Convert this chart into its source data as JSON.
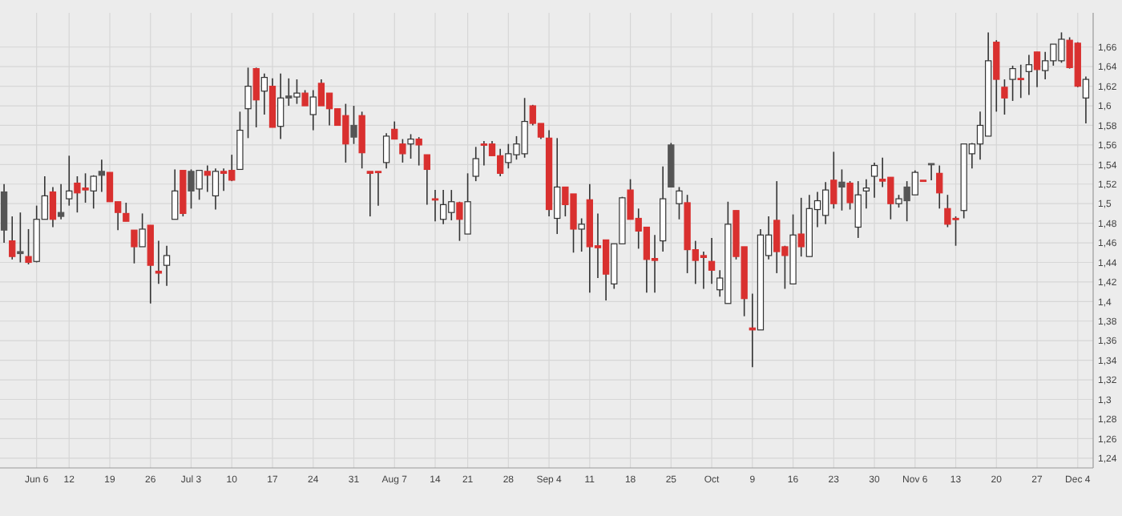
{
  "chart_data": {
    "type": "candlestick",
    "grid": true,
    "colors": [
      "#555555",
      "#d9302f",
      "#555555",
      "#d9302f",
      "#ffffff",
      "#ffffff",
      "#d9302f",
      "#555555",
      "#ffffff",
      "#d9302f",
      "#d9302f",
      "#ffffff",
      "#555555",
      "#d9302f",
      "#d9302f",
      "#d9302f",
      "#d9302f",
      "#ffffff",
      "#d9302f",
      "#d9302f",
      "#ffffff",
      "#ffffff",
      "#d9302f",
      "#555555",
      "#ffffff",
      "#d9302f",
      "#ffffff",
      "#d9302f",
      "#d9302f",
      "#ffffff",
      "#ffffff",
      "#d9302f",
      "#ffffff",
      "#d9302f",
      "#ffffff",
      "#555555",
      "#ffffff",
      "#d9302f",
      "#ffffff",
      "#d9302f",
      "#d9302f",
      "#d9302f",
      "#d9302f",
      "#555555",
      "#d9302f",
      "#d9302f",
      "#d9302f",
      "#ffffff",
      "#d9302f",
      "#d9302f",
      "#ffffff",
      "#d9302f",
      "#d9302f",
      "#d9302f",
      "#ffffff",
      "#ffffff",
      "#d9302f",
      "#ffffff",
      "#ffffff",
      "#d9302f",
      "#d9302f",
      "#d9302f",
      "#ffffff",
      "#ffffff",
      "#ffffff",
      "#d9302f",
      "#d9302f",
      "#d9302f",
      "#ffffff",
      "#d9302f",
      "#d9302f",
      "#ffffff",
      "#d9302f",
      "#d9302f",
      "#d9302f",
      "#ffffff",
      "#ffffff",
      "#d9302f",
      "#d9302f",
      "#d9302f",
      "#d9302f",
      "#ffffff",
      "#555555",
      "#ffffff",
      "#d9302f",
      "#d9302f",
      "#d9302f",
      "#d9302f",
      "#ffffff",
      "#ffffff",
      "#d9302f",
      "#d9302f",
      "#d9302f",
      "#ffffff",
      "#ffffff",
      "#d9302f",
      "#d9302f",
      "#ffffff",
      "#d9302f",
      "#ffffff",
      "#ffffff",
      "#ffffff",
      "#d9302f",
      "#555555",
      "#d9302f",
      "#ffffff",
      "#ffffff",
      "#ffffff",
      "#d9302f",
      "#d9302f",
      "#ffffff",
      "#555555",
      "#ffffff",
      "#d9302f",
      "#555555",
      "#d9302f",
      "#d9302f",
      "#d9302f",
      "#ffffff",
      "#ffffff",
      "#ffffff",
      "#ffffff",
      "#d9302f",
      "#d9302f",
      "#ffffff",
      "#d9302f",
      "#ffffff",
      "#d9302f",
      "#ffffff",
      "#ffffff",
      "#ffffff",
      "#d9302f",
      "#d9302f",
      "#ffffff"
    ],
    "ylim": [
      1.23,
      1.695
    ],
    "yticks": [
      {
        "value": 1.24,
        "label": "1,24"
      },
      {
        "value": 1.26,
        "label": "1,26"
      },
      {
        "value": 1.28,
        "label": "1,28"
      },
      {
        "value": 1.3,
        "label": "1,3"
      },
      {
        "value": 1.32,
        "label": "1,32"
      },
      {
        "value": 1.34,
        "label": "1,34"
      },
      {
        "value": 1.36,
        "label": "1,36"
      },
      {
        "value": 1.38,
        "label": "1,38"
      },
      {
        "value": 1.4,
        "label": "1,4"
      },
      {
        "value": 1.42,
        "label": "1,42"
      },
      {
        "value": 1.44,
        "label": "1,44"
      },
      {
        "value": 1.46,
        "label": "1,46"
      },
      {
        "value": 1.48,
        "label": "1,48"
      },
      {
        "value": 1.5,
        "label": "1,5"
      },
      {
        "value": 1.52,
        "label": "1,52"
      },
      {
        "value": 1.54,
        "label": "1,54"
      },
      {
        "value": 1.56,
        "label": "1,56"
      },
      {
        "value": 1.58,
        "label": "1,58"
      },
      {
        "value": 1.6,
        "label": "1,6"
      },
      {
        "value": 1.62,
        "label": "1,62"
      },
      {
        "value": 1.64,
        "label": "1,64"
      },
      {
        "value": 1.66,
        "label": "1,66"
      }
    ],
    "categories": [
      null,
      null,
      null,
      null,
      "Jun 6",
      null,
      null,
      null,
      "12",
      null,
      null,
      null,
      null,
      "19",
      null,
      null,
      null,
      null,
      "26",
      null,
      null,
      null,
      null,
      "Jul 3",
      null,
      null,
      null,
      null,
      "10",
      null,
      null,
      null,
      null,
      "17",
      null,
      null,
      null,
      null,
      "24",
      null,
      null,
      null,
      null,
      "31",
      null,
      null,
      null,
      null,
      "Aug 7",
      null,
      null,
      null,
      null,
      "14",
      null,
      null,
      null,
      "21",
      null,
      null,
      null,
      null,
      "28",
      null,
      null,
      null,
      null,
      "Sep 4",
      null,
      null,
      null,
      null,
      "11",
      null,
      null,
      null,
      null,
      "18",
      null,
      null,
      null,
      null,
      "25",
      null,
      null,
      null,
      null,
      "Oct",
      null,
      null,
      null,
      null,
      "9",
      null,
      null,
      null,
      null,
      "16",
      null,
      null,
      null,
      null,
      "23",
      null,
      null,
      null,
      null,
      "30",
      null,
      null,
      null,
      null,
      "Nov 6",
      null,
      null,
      null,
      null,
      "13",
      null,
      null,
      null,
      null,
      "20",
      null,
      null,
      null,
      null,
      "27",
      null,
      null,
      null,
      null,
      "Dec 4",
      null
    ],
    "ohlc": [
      [
        1.473,
        1.52,
        1.46,
        1.512
      ],
      [
        1.462,
        1.487,
        1.443,
        1.446
      ],
      [
        1.449,
        1.491,
        1.44,
        1.451
      ],
      [
        1.446,
        1.474,
        1.438,
        1.44
      ],
      [
        1.441,
        1.498,
        1.44,
        1.484
      ],
      [
        1.484,
        1.528,
        1.484,
        1.508
      ],
      [
        1.512,
        1.517,
        1.476,
        1.484
      ],
      [
        1.487,
        1.52,
        1.484,
        1.491
      ],
      [
        1.505,
        1.549,
        1.498,
        1.513
      ],
      [
        1.521,
        1.528,
        1.491,
        1.511
      ],
      [
        1.516,
        1.531,
        1.501,
        1.514
      ],
      [
        1.513,
        1.529,
        1.495,
        1.528
      ],
      [
        1.529,
        1.545,
        1.512,
        1.533
      ],
      [
        1.532,
        1.532,
        1.502,
        1.502
      ],
      [
        1.502,
        1.502,
        1.473,
        1.491
      ],
      [
        1.49,
        1.501,
        1.482,
        1.482
      ],
      [
        1.473,
        1.473,
        1.439,
        1.456
      ],
      [
        1.456,
        1.49,
        1.456,
        1.474
      ],
      [
        1.478,
        1.478,
        1.398,
        1.437
      ],
      [
        1.431,
        1.462,
        1.418,
        1.429
      ],
      [
        1.437,
        1.457,
        1.416,
        1.447
      ],
      [
        1.484,
        1.535,
        1.484,
        1.513
      ],
      [
        1.534,
        1.534,
        1.487,
        1.49
      ],
      [
        1.513,
        1.535,
        1.495,
        1.533
      ],
      [
        1.515,
        1.534,
        1.504,
        1.534
      ],
      [
        1.533,
        1.539,
        1.512,
        1.529
      ],
      [
        1.508,
        1.536,
        1.494,
        1.533
      ],
      [
        1.533,
        1.536,
        1.513,
        1.531
      ],
      [
        1.534,
        1.55,
        1.523,
        1.524
      ],
      [
        1.535,
        1.594,
        1.535,
        1.575
      ],
      [
        1.597,
        1.639,
        1.567,
        1.62
      ],
      [
        1.638,
        1.639,
        1.578,
        1.606
      ],
      [
        1.615,
        1.633,
        1.591,
        1.629
      ],
      [
        1.62,
        1.628,
        1.578,
        1.578
      ],
      [
        1.579,
        1.633,
        1.566,
        1.608
      ],
      [
        1.608,
        1.628,
        1.6,
        1.61
      ],
      [
        1.609,
        1.627,
        1.602,
        1.613
      ],
      [
        1.613,
        1.616,
        1.6,
        1.6
      ],
      [
        1.591,
        1.616,
        1.575,
        1.609
      ],
      [
        1.623,
        1.627,
        1.6,
        1.6
      ],
      [
        1.613,
        1.613,
        1.58,
        1.597
      ],
      [
        1.597,
        1.597,
        1.58,
        1.58
      ],
      [
        1.59,
        1.602,
        1.542,
        1.561
      ],
      [
        1.568,
        1.6,
        1.561,
        1.58
      ],
      [
        1.59,
        1.594,
        1.536,
        1.552
      ],
      [
        1.533,
        1.533,
        1.487,
        1.531
      ],
      [
        1.533,
        1.533,
        1.498,
        1.532
      ],
      [
        1.542,
        1.572,
        1.536,
        1.569
      ],
      [
        1.576,
        1.584,
        1.566,
        1.566
      ],
      [
        1.561,
        1.566,
        1.542,
        1.551
      ],
      [
        1.561,
        1.571,
        1.546,
        1.566
      ],
      [
        1.566,
        1.568,
        1.539,
        1.56
      ],
      [
        1.55,
        1.55,
        1.499,
        1.535
      ],
      [
        1.505,
        1.514,
        1.482,
        1.504
      ],
      [
        1.484,
        1.514,
        1.479,
        1.499
      ],
      [
        1.491,
        1.514,
        1.483,
        1.502
      ],
      [
        1.501,
        1.502,
        1.462,
        1.484
      ],
      [
        1.469,
        1.531,
        1.469,
        1.502
      ],
      [
        1.528,
        1.558,
        1.523,
        1.546
      ],
      [
        1.561,
        1.564,
        1.539,
        1.56
      ],
      [
        1.561,
        1.564,
        1.549,
        1.549
      ],
      [
        1.549,
        1.556,
        1.528,
        1.531
      ],
      [
        1.542,
        1.561,
        1.536,
        1.551
      ],
      [
        1.55,
        1.569,
        1.545,
        1.561
      ],
      [
        1.551,
        1.608,
        1.547,
        1.584
      ],
      [
        1.6,
        1.601,
        1.58,
        1.582
      ],
      [
        1.582,
        1.582,
        1.566,
        1.568
      ],
      [
        1.567,
        1.575,
        1.487,
        1.494
      ],
      [
        1.485,
        1.567,
        1.469,
        1.517
      ],
      [
        1.517,
        1.517,
        1.487,
        1.499
      ],
      [
        1.51,
        1.51,
        1.45,
        1.474
      ],
      [
        1.474,
        1.485,
        1.451,
        1.479
      ],
      [
        1.504,
        1.52,
        1.409,
        1.456
      ],
      [
        1.457,
        1.49,
        1.424,
        1.455
      ],
      [
        1.463,
        1.463,
        1.401,
        1.428
      ],
      [
        1.418,
        1.459,
        1.413,
        1.459
      ],
      [
        1.459,
        1.507,
        1.459,
        1.506
      ],
      [
        1.514,
        1.525,
        1.484,
        1.484
      ],
      [
        1.485,
        1.495,
        1.454,
        1.472
      ],
      [
        1.476,
        1.476,
        1.409,
        1.443
      ],
      [
        1.444,
        1.468,
        1.409,
        1.442
      ],
      [
        1.462,
        1.538,
        1.451,
        1.505
      ],
      [
        1.517,
        1.562,
        1.517,
        1.56
      ],
      [
        1.5,
        1.517,
        1.484,
        1.513
      ],
      [
        1.501,
        1.509,
        1.429,
        1.453
      ],
      [
        1.453,
        1.462,
        1.418,
        1.442
      ],
      [
        1.447,
        1.451,
        1.413,
        1.445
      ],
      [
        1.441,
        1.465,
        1.418,
        1.432
      ],
      [
        1.412,
        1.432,
        1.405,
        1.424
      ],
      [
        1.398,
        1.502,
        1.398,
        1.479
      ],
      [
        1.493,
        1.493,
        1.443,
        1.446
      ],
      [
        1.456,
        1.456,
        1.385,
        1.403
      ],
      [
        1.373,
        1.408,
        1.333,
        1.371
      ],
      [
        1.371,
        1.474,
        1.371,
        1.468
      ],
      [
        1.447,
        1.487,
        1.443,
        1.468
      ],
      [
        1.483,
        1.523,
        1.429,
        1.451
      ],
      [
        1.456,
        1.457,
        1.413,
        1.447
      ],
      [
        1.418,
        1.489,
        1.418,
        1.468
      ],
      [
        1.469,
        1.506,
        1.446,
        1.456
      ],
      [
        1.446,
        1.509,
        1.446,
        1.495
      ],
      [
        1.494,
        1.512,
        1.476,
        1.503
      ],
      [
        1.488,
        1.522,
        1.479,
        1.514
      ],
      [
        1.524,
        1.553,
        1.495,
        1.5
      ],
      [
        1.517,
        1.535,
        1.493,
        1.522
      ],
      [
        1.521,
        1.523,
        1.494,
        1.501
      ],
      [
        1.476,
        1.523,
        1.465,
        1.509
      ],
      [
        1.513,
        1.525,
        1.495,
        1.516
      ],
      [
        1.528,
        1.542,
        1.506,
        1.539
      ],
      [
        1.525,
        1.547,
        1.517,
        1.523
      ],
      [
        1.527,
        1.527,
        1.484,
        1.5
      ],
      [
        1.5,
        1.509,
        1.496,
        1.505
      ],
      [
        1.503,
        1.523,
        1.482,
        1.517
      ],
      [
        1.509,
        1.534,
        1.509,
        1.532
      ],
      [
        1.524,
        1.524,
        1.523,
        1.523
      ],
      [
        1.541,
        1.541,
        1.524,
        1.54
      ],
      [
        1.531,
        1.539,
        1.495,
        1.511
      ],
      [
        1.495,
        1.509,
        1.476,
        1.479
      ],
      [
        1.485,
        1.487,
        1.457,
        1.484
      ],
      [
        1.493,
        1.561,
        1.485,
        1.561
      ],
      [
        1.551,
        1.562,
        1.536,
        1.561
      ],
      [
        1.561,
        1.594,
        1.545,
        1.58
      ],
      [
        1.569,
        1.675,
        1.569,
        1.646
      ],
      [
        1.665,
        1.667,
        1.594,
        1.627
      ],
      [
        1.619,
        1.627,
        1.591,
        1.608
      ],
      [
        1.627,
        1.641,
        1.605,
        1.638
      ],
      [
        1.628,
        1.642,
        1.608,
        1.627
      ],
      [
        1.635,
        1.652,
        1.611,
        1.642
      ],
      [
        1.655,
        1.655,
        1.619,
        1.637
      ],
      [
        1.636,
        1.655,
        1.627,
        1.646
      ],
      [
        1.646,
        1.663,
        1.641,
        1.663
      ],
      [
        1.646,
        1.675,
        1.644,
        1.668
      ],
      [
        1.667,
        1.67,
        1.638,
        1.639
      ],
      [
        1.664,
        1.665,
        1.619,
        1.62
      ],
      [
        1.608,
        1.63,
        1.582,
        1.627
      ]
    ]
  }
}
